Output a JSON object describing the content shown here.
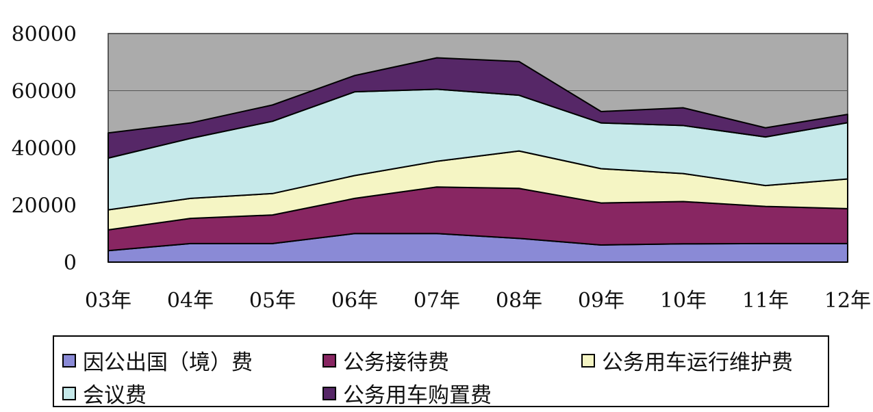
{
  "chart_data": {
    "type": "area",
    "stacked": true,
    "categories": [
      "03年",
      "04年",
      "05年",
      "06年",
      "07年",
      "08年",
      "09年",
      "10年",
      "11年",
      "12年"
    ],
    "ylim": [
      0,
      80000
    ],
    "yticks": [
      "0",
      "20000",
      "40000",
      "60000",
      "80000"
    ],
    "grid": true,
    "legend_position": "bottom",
    "series": [
      {
        "name": "因公出国（境）费",
        "color": "#8A8AD6",
        "values": [
          4000,
          6500,
          6500,
          10000,
          10000,
          8300,
          6000,
          6400,
          6500,
          6500
        ]
      },
      {
        "name": "公务接待费",
        "color": "#882662",
        "values": [
          7300,
          8800,
          10000,
          12300,
          16300,
          17500,
          14700,
          14800,
          13000,
          12200
        ]
      },
      {
        "name": "公务用车运行维护费",
        "color": "#F5F5C4",
        "values": [
          7000,
          7000,
          7500,
          8000,
          9000,
          13100,
          12000,
          9800,
          7300,
          10400
        ]
      },
      {
        "name": "会议费",
        "color": "#C6E9EA",
        "values": [
          18100,
          21000,
          25300,
          29300,
          25200,
          19500,
          16000,
          16800,
          17000,
          19700
        ]
      },
      {
        "name": "公务用车购置费",
        "color": "#562767",
        "values": [
          8800,
          5400,
          5700,
          5700,
          11000,
          11800,
          4000,
          6200,
          3200,
          2900
        ]
      }
    ],
    "plot_background": "#ABABAB",
    "gridline_color": "#555555"
  },
  "legend_rows": [
    [
      0,
      1,
      2
    ],
    [
      3,
      4
    ]
  ]
}
